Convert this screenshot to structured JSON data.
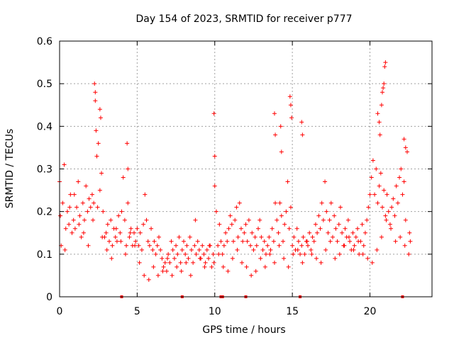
{
  "chart_data": {
    "type": "scatter",
    "title": "Day 154 of 2023, SRMTID for receiver p777",
    "xlabel": "GPS time / hours",
    "ylabel": "SRMTID / TECUs",
    "xlim": [
      0,
      24
    ],
    "ylim": [
      0,
      0.6
    ],
    "x_ticks": [
      0,
      5,
      10,
      15,
      20
    ],
    "x_tick_labels": [
      "0",
      "5",
      "10",
      "15",
      "20"
    ],
    "y_ticks": [
      0,
      0.1,
      0.2,
      0.3,
      0.4,
      0.5,
      0.6
    ],
    "y_tick_labels": [
      "0",
      "0.1",
      "0.2",
      "0.3",
      "0.4",
      "0.5",
      "0.6"
    ],
    "grid": true,
    "marker": "+",
    "colors": {
      "series": "#ff0000",
      "grid": "#a0a0a0",
      "axis": "#000000"
    },
    "series": [
      {
        "name": "SRMTID",
        "x": [
          0.0,
          0.1,
          0.2,
          0.3,
          0.4,
          0.5,
          0.6,
          0.7,
          0.8,
          0.9,
          1.0,
          1.1,
          1.2,
          1.3,
          1.4,
          1.5,
          1.6,
          1.7,
          1.8,
          1.9,
          2.0,
          2.1,
          2.2,
          2.3,
          2.4,
          2.5,
          2.6,
          2.7,
          2.8,
          2.9,
          3.0,
          3.1,
          3.2,
          3.3,
          3.4,
          3.5,
          3.6,
          3.7,
          3.8,
          3.9,
          4.0,
          4.1,
          4.2,
          4.3,
          4.4,
          4.5,
          4.6,
          4.7,
          4.8,
          4.9,
          5.0,
          5.1,
          5.2,
          5.3,
          5.4,
          5.5,
          5.6,
          5.7,
          5.8,
          5.9,
          6.0,
          6.1,
          6.2,
          6.3,
          6.4,
          6.5,
          6.6,
          6.7,
          6.8,
          6.9,
          7.0,
          7.1,
          7.2,
          7.3,
          7.4,
          7.5,
          7.6,
          7.7,
          7.8,
          7.9,
          8.0,
          8.1,
          8.2,
          8.3,
          8.4,
          8.5,
          8.6,
          8.7,
          8.8,
          8.9,
          9.0,
          9.1,
          9.2,
          9.3,
          9.4,
          9.5,
          9.6,
          9.7,
          9.8,
          9.9,
          10.0,
          10.1,
          10.2,
          10.3,
          10.4,
          10.5,
          10.6,
          10.7,
          10.8,
          10.9,
          11.0,
          11.1,
          11.2,
          11.3,
          11.4,
          11.5,
          11.6,
          11.7,
          11.8,
          11.9,
          12.0,
          12.1,
          12.2,
          12.3,
          12.4,
          12.5,
          12.6,
          12.7,
          12.8,
          12.9,
          13.0,
          13.1,
          13.2,
          13.3,
          13.4,
          13.5,
          13.6,
          13.7,
          13.8,
          13.9,
          14.0,
          14.1,
          14.2,
          14.3,
          14.4,
          14.5,
          14.6,
          14.7,
          14.8,
          14.9,
          15.0,
          15.1,
          15.2,
          15.3,
          15.4,
          15.5,
          15.6,
          15.7,
          15.8,
          15.9,
          16.0,
          16.1,
          16.2,
          16.3,
          16.4,
          16.5,
          16.6,
          16.7,
          16.8,
          16.9,
          17.0,
          17.1,
          17.2,
          17.3,
          17.4,
          17.5,
          17.6,
          17.7,
          17.8,
          17.9,
          18.0,
          18.1,
          18.2,
          18.3,
          18.4,
          18.5,
          18.6,
          18.7,
          18.8,
          18.9,
          19.0,
          19.1,
          19.2,
          19.3,
          19.4,
          19.5,
          19.6,
          19.7,
          19.8,
          19.9,
          20.0,
          20.1,
          20.2,
          20.3,
          20.4,
          20.5,
          20.6,
          20.7,
          20.8,
          20.9,
          21.0,
          21.1,
          21.2,
          21.3,
          21.4,
          21.5,
          21.6,
          21.7,
          21.8,
          21.9,
          22.0,
          22.1,
          22.2,
          22.3,
          22.4,
          22.5,
          22.6,
          0.05,
          0.35,
          0.65,
          0.95,
          1.25,
          1.55,
          1.85,
          2.15,
          2.45,
          2.75,
          3.05,
          3.35,
          3.65,
          3.95,
          4.25,
          4.55,
          4.85,
          5.15,
          5.45,
          5.75,
          6.05,
          6.35,
          6.65,
          6.95,
          7.25,
          7.55,
          7.85,
          8.15,
          8.45,
          8.75,
          9.05,
          9.35,
          9.65,
          9.95,
          10.25,
          10.55,
          10.85,
          11.15,
          11.45,
          11.75,
          12.05,
          12.35,
          12.65,
          12.95,
          13.25,
          13.55,
          13.85,
          14.15,
          14.45,
          14.75,
          15.05,
          15.35,
          15.65,
          15.95,
          16.25,
          16.55,
          16.85,
          17.15,
          17.45,
          17.75,
          18.05,
          18.35,
          18.65,
          18.95,
          19.25,
          19.55,
          19.85,
          20.15,
          20.45,
          20.75,
          21.05,
          21.35,
          21.65,
          21.95,
          22.25,
          22.55,
          2.25,
          2.3,
          2.35,
          2.6,
          2.65,
          4.35,
          4.4,
          9.95,
          10.0,
          13.85,
          13.9,
          14.25,
          14.3,
          14.85,
          14.9,
          14.95,
          15.6,
          15.65,
          20.5,
          20.6,
          20.65,
          20.75,
          20.8,
          20.85,
          20.9,
          20.95,
          21.0,
          22.2,
          22.3
        ],
        "y": [
          0.27,
          0.12,
          0.22,
          0.31,
          0.16,
          0.2,
          0.17,
          0.24,
          0.15,
          0.18,
          0.16,
          0.21,
          0.27,
          0.19,
          0.14,
          0.22,
          0.18,
          0.26,
          0.2,
          0.23,
          0.21,
          0.24,
          0.22,
          0.46,
          0.33,
          0.36,
          0.25,
          0.29,
          0.2,
          0.14,
          0.15,
          0.17,
          0.13,
          0.18,
          0.12,
          0.16,
          0.14,
          0.13,
          0.19,
          0.15,
          0.2,
          0.28,
          0.18,
          0.12,
          0.22,
          0.14,
          0.16,
          0.12,
          0.15,
          0.13,
          0.16,
          0.12,
          0.15,
          0.11,
          0.17,
          0.24,
          0.18,
          0.13,
          0.12,
          0.16,
          0.11,
          0.13,
          0.1,
          0.12,
          0.14,
          0.11,
          0.09,
          0.07,
          0.08,
          0.06,
          0.1,
          0.08,
          0.13,
          0.11,
          0.09,
          0.12,
          0.1,
          0.14,
          0.08,
          0.11,
          0.13,
          0.1,
          0.12,
          0.09,
          0.14,
          0.11,
          0.08,
          0.12,
          0.1,
          0.13,
          0.11,
          0.09,
          0.12,
          0.1,
          0.08,
          0.11,
          0.09,
          0.12,
          0.07,
          0.1,
          0.26,
          0.2,
          0.12,
          0.17,
          0.13,
          0.1,
          0.12,
          0.15,
          0.13,
          0.16,
          0.19,
          0.17,
          0.13,
          0.18,
          0.21,
          0.14,
          0.22,
          0.16,
          0.13,
          0.15,
          0.17,
          0.13,
          0.18,
          0.12,
          0.15,
          0.11,
          0.14,
          0.12,
          0.16,
          0.18,
          0.14,
          0.11,
          0.13,
          0.1,
          0.12,
          0.14,
          0.11,
          0.16,
          0.13,
          0.22,
          0.18,
          0.15,
          0.22,
          0.19,
          0.13,
          0.17,
          0.2,
          0.27,
          0.16,
          0.21,
          0.12,
          0.14,
          0.11,
          0.16,
          0.13,
          0.1,
          0.12,
          0.14,
          0.1,
          0.13,
          0.12,
          0.15,
          0.11,
          0.14,
          0.13,
          0.17,
          0.15,
          0.19,
          0.16,
          0.22,
          0.18,
          0.27,
          0.2,
          0.15,
          0.18,
          0.22,
          0.14,
          0.19,
          0.16,
          0.13,
          0.17,
          0.21,
          0.15,
          0.12,
          0.16,
          0.14,
          0.18,
          0.13,
          0.11,
          0.15,
          0.12,
          0.14,
          0.16,
          0.1,
          0.13,
          0.17,
          0.12,
          0.15,
          0.18,
          0.21,
          0.24,
          0.28,
          0.32,
          0.24,
          0.3,
          0.22,
          0.26,
          0.29,
          0.21,
          0.25,
          0.19,
          0.24,
          0.2,
          0.17,
          0.21,
          0.23,
          0.19,
          0.26,
          0.22,
          0.28,
          0.3,
          0.24,
          0.27,
          0.18,
          0.34,
          0.1,
          0.13,
          0.19,
          0.11,
          0.21,
          0.24,
          0.17,
          0.15,
          0.12,
          0.18,
          0.21,
          0.14,
          0.11,
          0.09,
          0.16,
          0.13,
          0.1,
          0.15,
          0.12,
          0.08,
          0.05,
          0.04,
          0.07,
          0.05,
          0.06,
          0.09,
          0.05,
          0.07,
          0.06,
          0.08,
          0.05,
          0.18,
          0.09,
          0.07,
          0.12,
          0.08,
          0.1,
          0.07,
          0.06,
          0.09,
          0.11,
          0.08,
          0.07,
          0.05,
          0.06,
          0.09,
          0.07,
          0.1,
          0.08,
          0.12,
          0.09,
          0.07,
          0.1,
          0.11,
          0.08,
          0.13,
          0.1,
          0.09,
          0.08,
          0.11,
          0.13,
          0.09,
          0.1,
          0.12,
          0.14,
          0.11,
          0.13,
          0.1,
          0.09,
          0.08,
          0.11,
          0.14,
          0.18,
          0.16,
          0.13,
          0.14,
          0.12,
          0.15,
          0.5,
          0.48,
          0.39,
          0.44,
          0.42,
          0.36,
          0.3,
          0.43,
          0.33,
          0.43,
          0.38,
          0.4,
          0.34,
          0.47,
          0.45,
          0.42,
          0.41,
          0.38,
          0.43,
          0.41,
          0.38,
          0.45,
          0.48,
          0.49,
          0.5,
          0.54,
          0.55,
          0.37,
          0.35
        ]
      }
    ],
    "x_axis_markers": [
      4.0,
      7.9,
      10.4,
      10.5,
      12.0,
      15.5,
      22.1
    ]
  }
}
